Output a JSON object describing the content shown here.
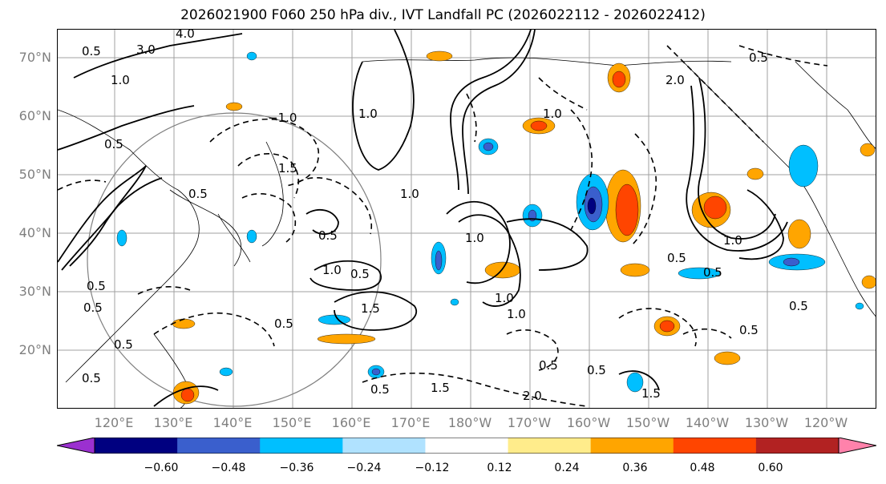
{
  "title": "2026021900 F060 250 hPa div., IVT Landfall PC (2026022112 - 2026022412)",
  "lat_labels": [
    "70°N",
    "60°N",
    "50°N",
    "40°N",
    "30°N",
    "20°N"
  ],
  "lon_labels": [
    "120°E",
    "130°E",
    "140°E",
    "150°E",
    "160°E",
    "170°E",
    "180°W",
    "170°W",
    "160°W",
    "150°W",
    "140°W",
    "130°W",
    "120°W"
  ],
  "colorbar": {
    "colors": [
      "#9b30d0",
      "#000080",
      "#3a5fcd",
      "#00bfff",
      "#b0e2ff",
      "#ffffff",
      "#ffec8b",
      "#ffa500",
      "#ff4500",
      "#b22222",
      "#ff82ab"
    ],
    "ticks": [
      "−0.60",
      "−0.48",
      "−0.36",
      "−0.24",
      "−0.12",
      "0.12",
      "0.24",
      "0.36",
      "0.48",
      "0.60"
    ]
  },
  "contour_labels": [
    "4.0",
    "3.0",
    "0.5",
    "1.0",
    "−1.0",
    "0.5",
    "1.5",
    "0.5",
    "1.0",
    "0.5",
    "1.5",
    "0.5",
    "1.0",
    "0.5",
    "0.5",
    "0.5",
    "0.5",
    "1.0",
    "0.5",
    "0.5",
    "0.5",
    "1.5",
    "2.0",
    "1.0",
    "1.5",
    "0.5",
    "2.0",
    "1.0",
    "1.0",
    "1.0",
    "0.5",
    "1.0",
    "0.5",
    "0.5",
    "0.5",
    "0.5"
  ]
}
